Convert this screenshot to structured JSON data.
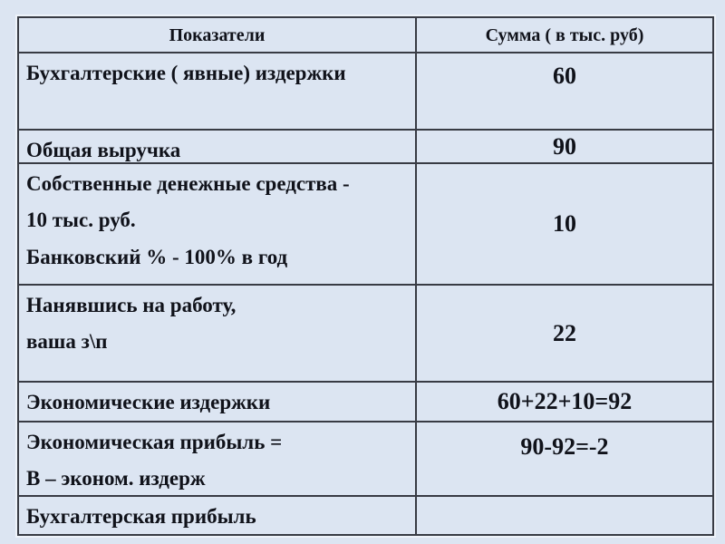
{
  "table": {
    "columns": [
      "Показатели",
      "Сумма ( в тыс. руб)"
    ],
    "rows": [
      {
        "lines": [
          "Бухгалтерские ( явные) издержки"
        ],
        "value": "60"
      },
      {
        "lines": [
          "Общая выручка"
        ],
        "value": "90"
      },
      {
        "lines": [
          "Собственные  денежные средства  -",
          "10 тыс. руб.",
          "Банковский % - 100% в год"
        ],
        "value": "10"
      },
      {
        "lines": [
          "Нанявшись на работу,",
          "ваша з\\п"
        ],
        "value": "22"
      },
      {
        "lines": [
          "Экономические издержки"
        ],
        "value": "60+22+10=92"
      },
      {
        "lines": [
          "Экономическая прибыль =",
          "В – эконом. издерж"
        ],
        "value": "90-92=-2"
      },
      {
        "lines": [
          "Бухгалтерская прибыль"
        ],
        "value": ""
      }
    ],
    "colors": {
      "background": "#dce5f2",
      "border": "#383b44",
      "text": "#10121a"
    }
  }
}
